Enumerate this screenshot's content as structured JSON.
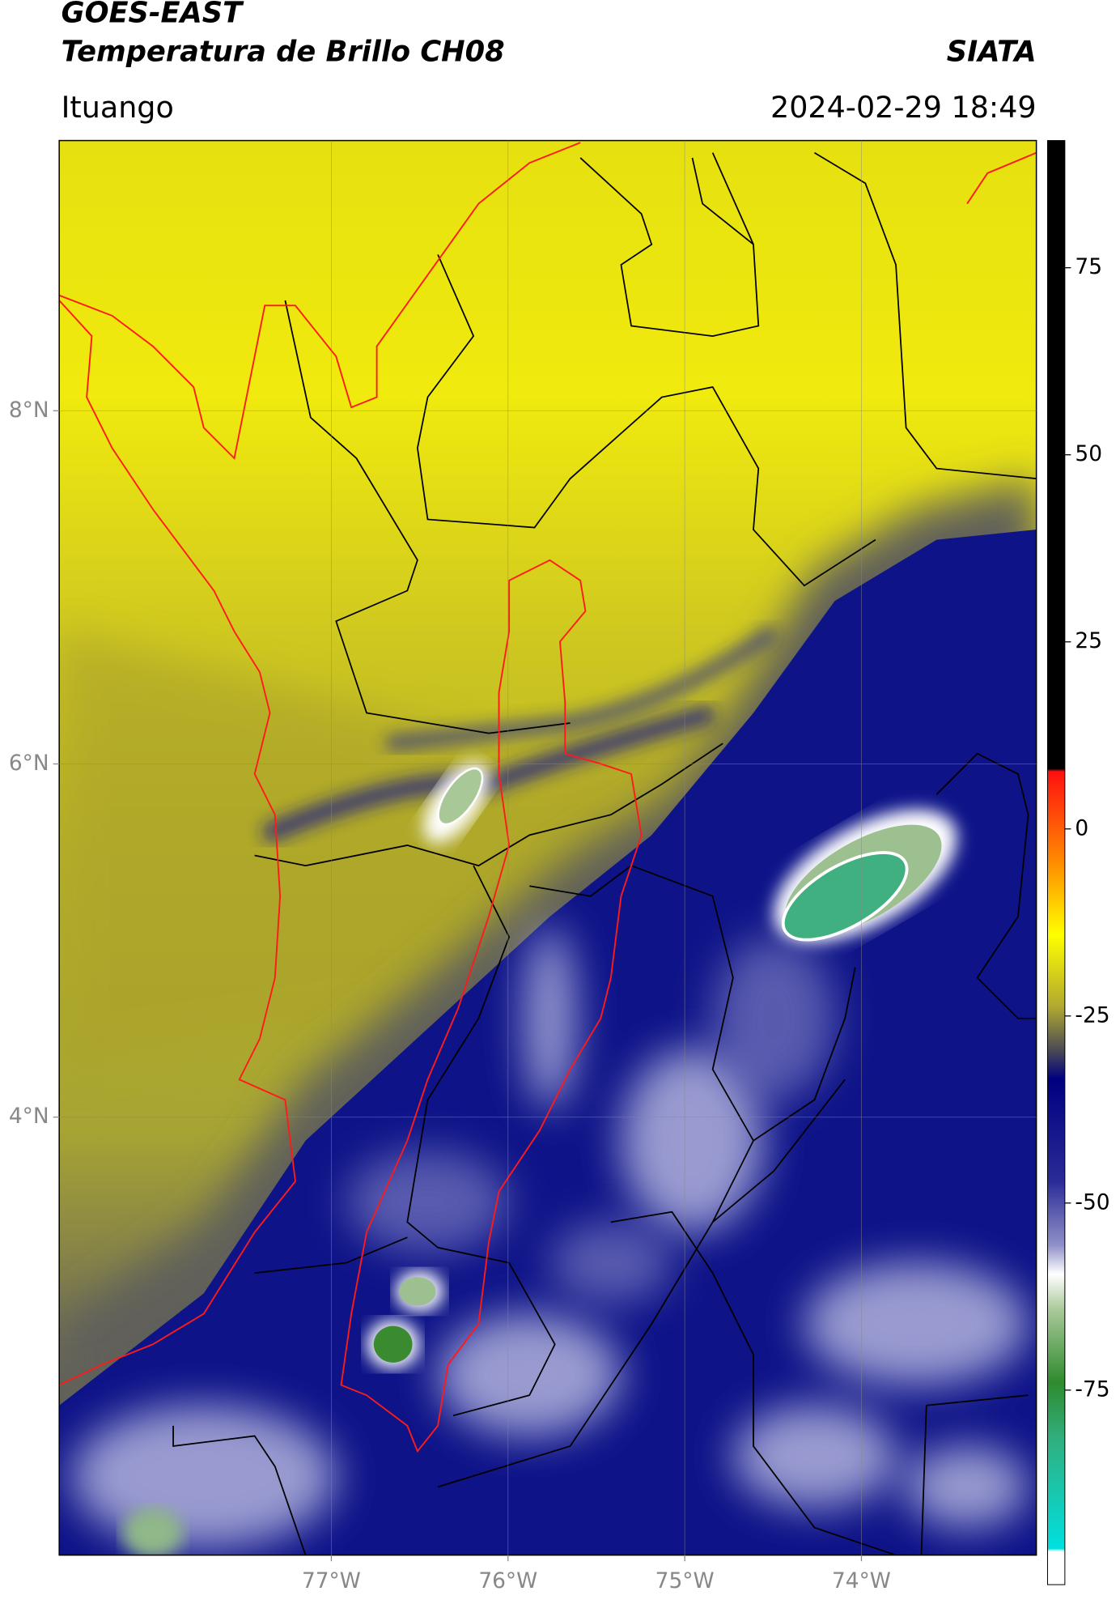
{
  "header": {
    "title": "GOES-EAST",
    "subtitle": "Temperatura de Brillo CH08",
    "agency": "SIATA",
    "location": "Ituango",
    "datetime": "2024-02-29 18:49"
  },
  "map": {
    "xlim": [
      -78.54,
      -73.01
    ],
    "ylim": [
      1.52,
      9.53
    ],
    "xticks": [
      {
        "value": -77,
        "label": "77°W"
      },
      {
        "value": -76,
        "label": "76°W"
      },
      {
        "value": -75,
        "label": "75°W"
      },
      {
        "value": -74,
        "label": "74°W"
      }
    ],
    "yticks": [
      {
        "value": 8,
        "label": "8°N"
      },
      {
        "value": 6,
        "label": "6°N"
      },
      {
        "value": 4,
        "label": "4°N"
      }
    ],
    "grid": true
  },
  "colorbar": {
    "clim": [
      -101,
      92
    ],
    "ticks": [
      75,
      50,
      25,
      0,
      -25,
      -50,
      -75
    ]
  }
}
